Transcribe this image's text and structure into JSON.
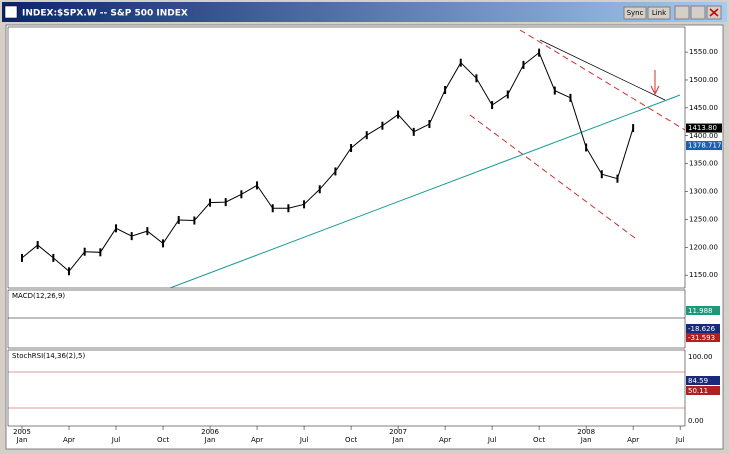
{
  "window": {
    "title": "INDEX:$SPX.W -- S&P 500 INDEX",
    "buttons": [
      "Sync",
      "Link"
    ]
  },
  "chart_data": {
    "type": "line",
    "x": [
      "2005-01",
      "2005-02",
      "2005-03",
      "2005-04",
      "2005-05",
      "2005-06",
      "2005-07",
      "2005-08",
      "2005-09",
      "2005-10",
      "2005-11",
      "2005-12",
      "2006-01",
      "2006-02",
      "2006-03",
      "2006-04",
      "2006-05",
      "2006-06",
      "2006-07",
      "2006-08",
      "2006-09",
      "2006-10",
      "2006-11",
      "2006-12",
      "2007-01",
      "2007-02",
      "2007-03",
      "2007-04",
      "2007-05",
      "2007-06",
      "2007-07",
      "2007-08",
      "2007-09",
      "2007-10",
      "2007-11",
      "2007-12",
      "2008-01",
      "2008-02",
      "2008-03",
      "2008-04"
    ],
    "series": [
      {
        "name": "S&P 500",
        "color": "#000000",
        "values": [
          1181,
          1204,
          1181,
          1157,
          1192,
          1191,
          1234,
          1220,
          1229,
          1207,
          1249,
          1248,
          1280,
          1281,
          1295,
          1311,
          1270,
          1270,
          1277,
          1304,
          1336,
          1378,
          1401,
          1418,
          1438,
          1407,
          1421,
          1482,
          1531,
          1503,
          1455,
          1474,
          1527,
          1549,
          1481,
          1468,
          1379,
          1331,
          1323,
          1413.8
        ]
      }
    ],
    "last_label": "1413.80",
    "ma_label": "1378.717",
    "ylim": [
      1127,
      1595
    ],
    "yticks": [
      {
        "value": 1150,
        "label": "1150.00"
      },
      {
        "value": 1200,
        "label": "1200.00"
      },
      {
        "value": 1250,
        "label": "1250.00"
      },
      {
        "value": 1300,
        "label": "1300.00"
      },
      {
        "value": 1350,
        "label": "1350.00"
      },
      {
        "value": 1400,
        "label": "1400.00"
      },
      {
        "value": 1450,
        "label": "1450.00"
      },
      {
        "value": 1500,
        "label": "1500.00"
      },
      {
        "value": 1550,
        "label": "1550.00"
      }
    ],
    "xticks": [
      {
        "value": "2005-01",
        "label": "Jan"
      },
      {
        "value": "2005-04",
        "label": "Apr"
      },
      {
        "value": "2005-07",
        "label": "Jul"
      },
      {
        "value": "2005-10",
        "label": "Oct"
      },
      {
        "value": "2006-01",
        "label": "Jan"
      },
      {
        "value": "2006-04",
        "label": "Apr"
      },
      {
        "value": "2006-07",
        "label": "Jul"
      },
      {
        "value": "2006-10",
        "label": "Oct"
      },
      {
        "value": "2007-01",
        "label": "Jan"
      },
      {
        "value": "2007-04",
        "label": "Apr"
      },
      {
        "value": "2007-07",
        "label": "Jul"
      },
      {
        "value": "2007-10",
        "label": "Oct"
      },
      {
        "value": "2008-01",
        "label": "Jan"
      },
      {
        "value": "2008-04",
        "label": "Apr"
      },
      {
        "value": "2008-07",
        "label": "Jul"
      }
    ],
    "year_ticks": [
      {
        "value": "2005-01",
        "label": "2005"
      },
      {
        "value": "2006-01",
        "label": "2006"
      },
      {
        "value": "2007-01",
        "label": "2007"
      },
      {
        "value": "2008-01",
        "label": "2008"
      }
    ]
  },
  "macd": {
    "title": "MACD(12,26,9)",
    "labels": [
      "11.988",
      "-18.626",
      "-31.593"
    ]
  },
  "stoch": {
    "title": "StochRSI(14,36(2),5)",
    "labels": [
      "100.00",
      "84.59",
      "50.11",
      "0.00"
    ]
  }
}
